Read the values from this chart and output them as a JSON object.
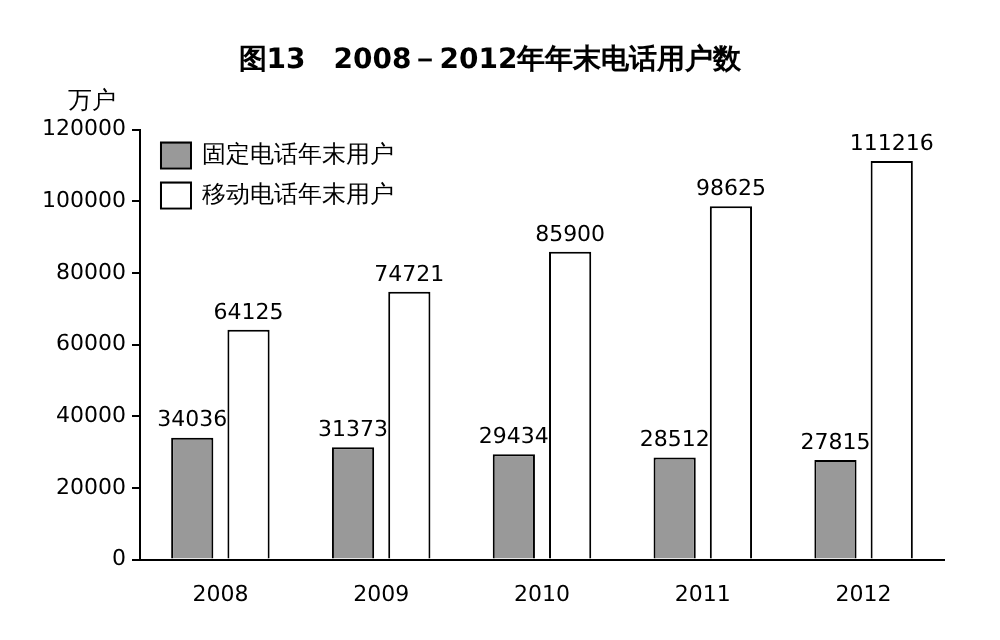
{
  "chart_data": {
    "type": "bar",
    "title": "图13　2008－2012年年末电话用户数",
    "ylabel": "万户",
    "categories": [
      "2008",
      "2009",
      "2010",
      "2011",
      "2012"
    ],
    "series": [
      {
        "name": "固定电话年末用户",
        "color": "#999999",
        "values": [
          34036,
          31373,
          29434,
          28512,
          27815
        ]
      },
      {
        "name": "移动电话年末用户",
        "color": "#ffffff",
        "values": [
          64125,
          74721,
          85900,
          98625,
          111216
        ]
      }
    ],
    "ylim": [
      0,
      120000
    ],
    "yticks": [
      0,
      20000,
      40000,
      60000,
      80000,
      100000,
      120000
    ],
    "grid": false,
    "legend": "top left",
    "data_labels": true
  }
}
